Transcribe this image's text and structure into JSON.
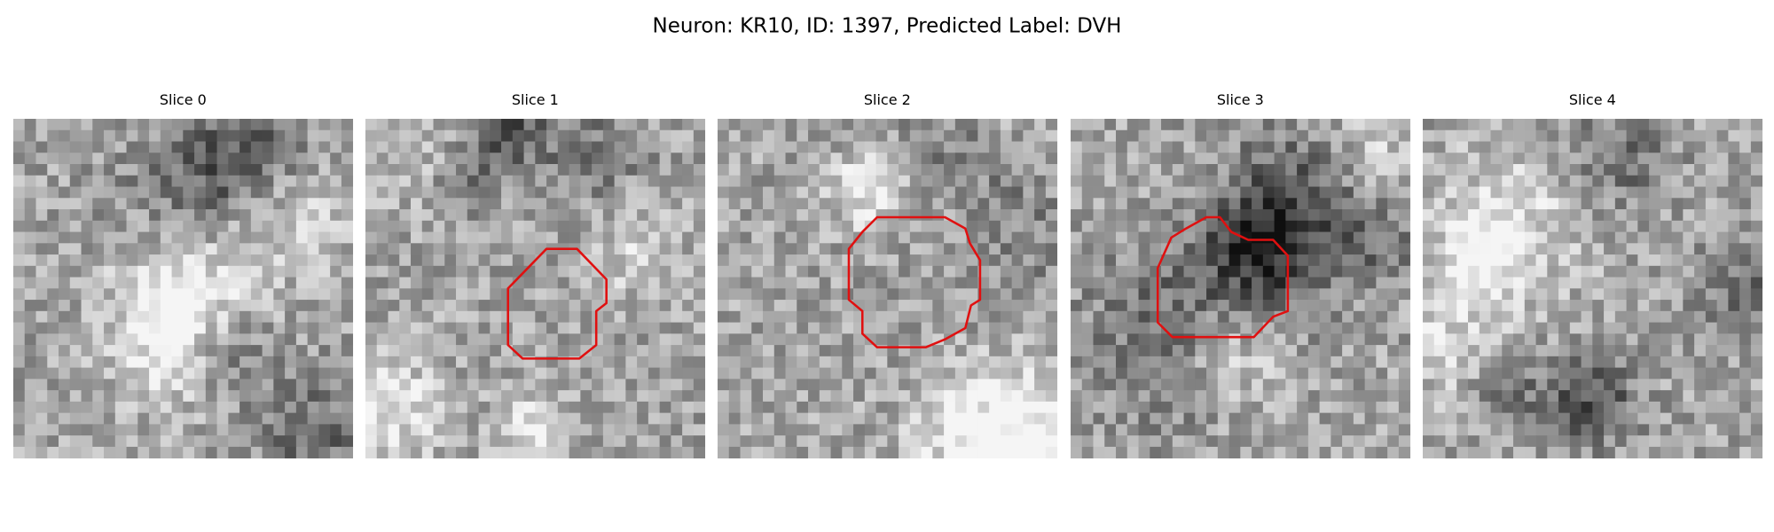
{
  "title": "Neuron: KR10, ID: 1397, Predicted Label: DVH",
  "panels": [
    {
      "title": "Slice 0"
    },
    {
      "title": "Slice 1"
    },
    {
      "title": "Slice 2"
    },
    {
      "title": "Slice 3"
    },
    {
      "title": "Slice 4"
    }
  ]
}
